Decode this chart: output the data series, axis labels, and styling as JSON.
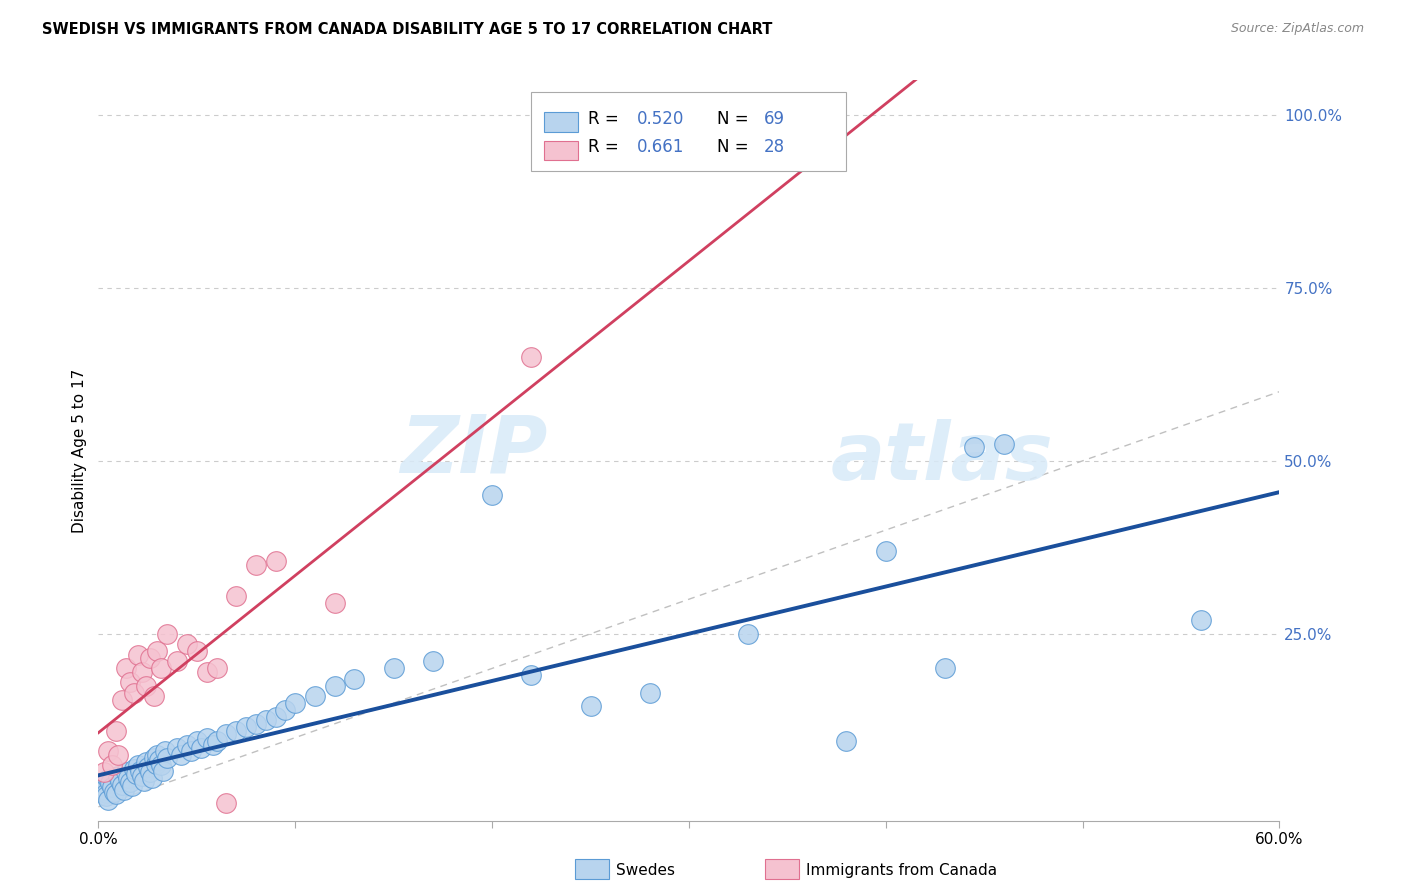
{
  "title": "SWEDISH VS IMMIGRANTS FROM CANADA DISABILITY AGE 5 TO 17 CORRELATION CHART",
  "source": "Source: ZipAtlas.com",
  "ylabel": "Disability Age 5 to 17",
  "xlim": [
    0.0,
    0.6
  ],
  "ylim": [
    -0.02,
    1.05
  ],
  "grid_color": "#cccccc",
  "bg_color": "#ffffff",
  "swedes_color": "#b8d4ee",
  "swedes_edge_color": "#5b9bd5",
  "canada_color": "#f5c2d0",
  "canada_edge_color": "#e07090",
  "swedes_line_color": "#1a4f9c",
  "canada_line_color": "#d04060",
  "identity_line_color": "#c0c0c0",
  "watermark_color": "#d8eaf8",
  "swedes_R": 0.52,
  "swedes_N": 69,
  "canada_R": 0.661,
  "canada_N": 28,
  "legend_color_swedes": "#b8d4ee",
  "legend_edge_swedes": "#5b9bd5",
  "legend_color_canada": "#f5c2d0",
  "legend_edge_canada": "#e07090",
  "right_tick_color": "#4472c4",
  "swedes_x": [
    0.002,
    0.003,
    0.004,
    0.004,
    0.005,
    0.005,
    0.006,
    0.007,
    0.008,
    0.009,
    0.01,
    0.011,
    0.012,
    0.013,
    0.014,
    0.015,
    0.016,
    0.017,
    0.018,
    0.019,
    0.02,
    0.021,
    0.022,
    0.023,
    0.024,
    0.025,
    0.026,
    0.027,
    0.028,
    0.029,
    0.03,
    0.031,
    0.032,
    0.033,
    0.034,
    0.035,
    0.04,
    0.042,
    0.045,
    0.047,
    0.05,
    0.052,
    0.055,
    0.058,
    0.06,
    0.065,
    0.07,
    0.075,
    0.08,
    0.085,
    0.09,
    0.095,
    0.1,
    0.11,
    0.12,
    0.13,
    0.15,
    0.17,
    0.2,
    0.22,
    0.25,
    0.28,
    0.33,
    0.38,
    0.4,
    0.43,
    0.445,
    0.46,
    0.56
  ],
  "swedes_y": [
    0.03,
    0.025,
    0.02,
    0.015,
    0.04,
    0.01,
    0.035,
    0.028,
    0.022,
    0.018,
    0.045,
    0.038,
    0.032,
    0.025,
    0.05,
    0.042,
    0.036,
    0.03,
    0.055,
    0.048,
    0.06,
    0.052,
    0.045,
    0.038,
    0.065,
    0.058,
    0.05,
    0.042,
    0.07,
    0.062,
    0.075,
    0.068,
    0.06,
    0.052,
    0.08,
    0.07,
    0.085,
    0.075,
    0.09,
    0.08,
    0.095,
    0.085,
    0.1,
    0.09,
    0.095,
    0.105,
    0.11,
    0.115,
    0.12,
    0.125,
    0.13,
    0.14,
    0.15,
    0.16,
    0.175,
    0.185,
    0.2,
    0.21,
    0.45,
    0.19,
    0.145,
    0.165,
    0.25,
    0.095,
    0.37,
    0.2,
    0.52,
    0.525,
    0.27
  ],
  "canada_x": [
    0.003,
    0.005,
    0.007,
    0.009,
    0.01,
    0.012,
    0.014,
    0.016,
    0.018,
    0.02,
    0.022,
    0.024,
    0.026,
    0.028,
    0.03,
    0.032,
    0.035,
    0.04,
    0.045,
    0.05,
    0.055,
    0.06,
    0.065,
    0.07,
    0.08,
    0.09,
    0.12,
    0.22
  ],
  "canada_y": [
    0.05,
    0.08,
    0.06,
    0.11,
    0.075,
    0.155,
    0.2,
    0.18,
    0.165,
    0.22,
    0.195,
    0.175,
    0.215,
    0.16,
    0.225,
    0.2,
    0.25,
    0.21,
    0.235,
    0.225,
    0.195,
    0.2,
    0.005,
    0.305,
    0.35,
    0.355,
    0.295,
    0.65
  ]
}
